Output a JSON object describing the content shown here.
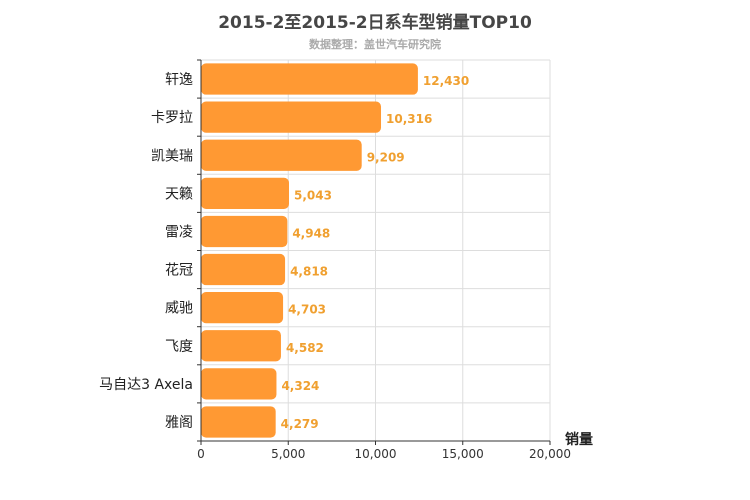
{
  "chart_data": {
    "type": "bar",
    "orientation": "horizontal",
    "title": "2015-2至2015-2日系车型销量TOP10",
    "subtitle": "数据整理：盖世汽车研究院",
    "xlabel": "销量",
    "ylabel": "",
    "categories": [
      "轩逸",
      "卡罗拉",
      "凯美瑞",
      "天籁",
      "雷凌",
      "花冠",
      "威驰",
      "飞度",
      "马自达3 Axela",
      "雅阁"
    ],
    "values": [
      12430,
      10316,
      9209,
      5043,
      4948,
      4818,
      4703,
      4582,
      4324,
      4279
    ],
    "value_labels": [
      "12,430",
      "10,316",
      "9,209",
      "5,043",
      "4,948",
      "4,818",
      "4,703",
      "4,582",
      "4,324",
      "4,279"
    ],
    "xlim": [
      0,
      20000
    ],
    "xticks": [
      0,
      5000,
      10000,
      15000,
      20000
    ],
    "xtick_labels": [
      "0",
      "5,000",
      "10,000",
      "15,000",
      "20,000"
    ],
    "grid": true,
    "legend": "none",
    "colors": {
      "bar": "#ff9933",
      "value_label": "#f0a030",
      "grid": "#dddddd",
      "axis": "#333333",
      "category_text": "#222222",
      "tick_text": "#333333"
    }
  }
}
